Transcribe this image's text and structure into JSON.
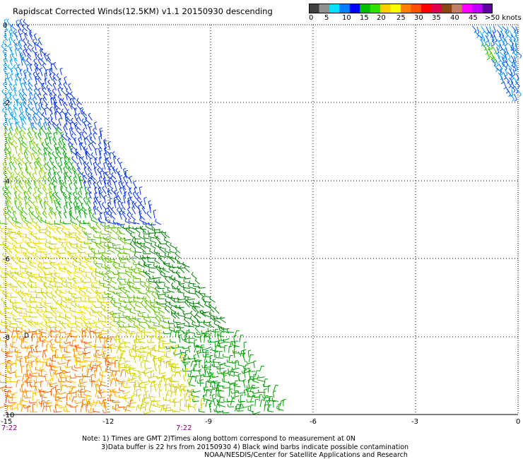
{
  "title": "Rapidscat Corrected Winds(12.5KM) v1.1 20150930 descending",
  "speed_scale": {
    "labels": [
      "0",
      "5",
      "10",
      "15",
      "20",
      "25",
      "30",
      "35",
      "40",
      "45",
      ">50 knots"
    ],
    "colors": [
      "#404040",
      "#909090",
      "#00e0ff",
      "#0080ff",
      "#0000ff",
      "#00c000",
      "#30e000",
      "#ffd000",
      "#ffff00",
      "#ff8000",
      "#ff5000",
      "#ff0000",
      "#e00050",
      "#8b4513",
      "#c08060",
      "#ff00ff",
      "#c000ff",
      "#6000a0"
    ]
  },
  "map": {
    "lon_ticks": [
      "-15",
      "-12",
      "-9",
      "-6",
      "-3",
      "0"
    ],
    "lat_ticks": [
      "0",
      "-2",
      "-4",
      "-6",
      "-8",
      "-10"
    ],
    "time_labels": [
      "7:22",
      "7:22"
    ],
    "marker": "D"
  },
  "notes": {
    "line1": "Note: 1) Times are GMT 2)Times along bottom correspond to measurement at 0N",
    "line2": "3)Data buffer is 22 hrs from 20150930 4) Black wind barbs indicate possible contamination",
    "line3": "NOAA/NESDIS/Center for Satellite Applications and Research"
  }
}
